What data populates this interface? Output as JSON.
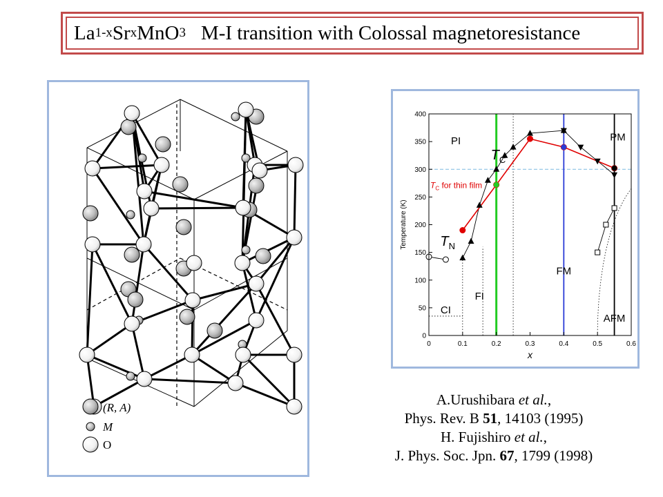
{
  "title": {
    "formula": {
      "el1": "La",
      "sub1": "1-x",
      "el2": "Sr",
      "sub2": "x",
      "el3": "MnO",
      "sub3": "3"
    },
    "text": "M-I transition with Colossal magnetoresistance"
  },
  "crystal": {
    "legend": [
      {
        "label": "(R, A)",
        "style": "large-shaded-sphere"
      },
      {
        "label": "M",
        "style": "small-shaded-sphere"
      },
      {
        "label": "O",
        "style": "large-white-sphere"
      }
    ]
  },
  "chart_data": {
    "type": "line",
    "title": "",
    "xlabel": "x",
    "ylabel": "Temperature (K)",
    "xlim": [
      0,
      0.6
    ],
    "ylim": [
      0,
      400
    ],
    "xticks": [
      "0",
      "0.1",
      "0.2",
      "0.3",
      "0.4",
      "0.5",
      "0.6"
    ],
    "yticks": [
      "0",
      "50",
      "100",
      "150",
      "200",
      "250",
      "300",
      "350",
      "400"
    ],
    "series": [
      {
        "marker": "circle-open",
        "color": "#000000",
        "x": [
          0.0,
          0.05
        ],
        "y": [
          142,
          137
        ]
      },
      {
        "marker": "triangle-up",
        "color": "#000000",
        "x": [
          0.1,
          0.125,
          0.15,
          0.175,
          0.2,
          0.225,
          0.25,
          0.3,
          0.4
        ],
        "y": [
          140,
          170,
          235,
          280,
          300,
          325,
          340,
          365,
          370
        ]
      },
      {
        "marker": "triangle-down",
        "color": "#000000",
        "x": [
          0.4,
          0.45,
          0.5,
          0.55
        ],
        "y": [
          370,
          340,
          315,
          290
        ]
      },
      {
        "marker": "square-open",
        "color": "#000000",
        "x": [
          0.5,
          0.525,
          0.55
        ],
        "y": [
          150,
          200,
          230
        ]
      },
      {
        "name": "T_C for thin film",
        "marker": "circle-filled",
        "color": "#e00000",
        "x": [
          0.1,
          0.2,
          0.3,
          0.4,
          0.55
        ],
        "y": [
          190,
          272,
          355,
          340,
          302
        ]
      }
    ],
    "vertical_lines": [
      {
        "x": 0.2,
        "color": "#22cc22",
        "style": "solid"
      },
      {
        "x": 0.4,
        "color": "#2a3bd6",
        "style": "solid"
      },
      {
        "x": 0.55,
        "color": "#000000",
        "style": "solid"
      }
    ],
    "reference_lines": [
      {
        "y": 300,
        "color": "#7ab8e0",
        "style": "dashed"
      }
    ],
    "highlight_points": [
      {
        "x": 0.2,
        "y": 272,
        "color": "#22cc22"
      },
      {
        "x": 0.4,
        "y": 340,
        "color": "#2a3bd6"
      },
      {
        "x": 0.55,
        "y": 302,
        "color": "#000000"
      }
    ],
    "phase_labels": [
      {
        "text": "PI",
        "x": 0.08,
        "y": 345
      },
      {
        "text": "PM",
        "x": 0.56,
        "y": 352
      },
      {
        "text": "FM",
        "x": 0.4,
        "y": 110
      },
      {
        "text": "FI",
        "x": 0.15,
        "y": 65
      },
      {
        "text": "CI",
        "x": 0.05,
        "y": 40
      },
      {
        "text": "AFM",
        "x": 0.55,
        "y": 25
      }
    ],
    "annotations": [
      {
        "text": "T",
        "sub": "C",
        "color": "#000000",
        "x": 0.2,
        "y": 318
      },
      {
        "text": "T",
        "sub": "N",
        "color": "#000000",
        "x": 0.05,
        "y": 162
      },
      {
        "text": "T",
        "sub": "C",
        "suffix": " for thin film",
        "color": "#e00000",
        "x": 0.0,
        "y": 266
      }
    ]
  },
  "references": {
    "ref1": {
      "authors": "A.Urushibara",
      "etal": "et al.",
      "tail": ","
    },
    "ref2": {
      "journal": "Phys. Rev. B ",
      "volume": "51",
      "rest": ", 14103 (1995)"
    },
    "ref3": {
      "authors": "H. Fujishiro",
      "etal": "et al.",
      "tail": ","
    },
    "ref4": {
      "journal": "J. Phys. Soc. Jpn. ",
      "volume": "67",
      "rest": ", 1799 (1998)"
    }
  }
}
